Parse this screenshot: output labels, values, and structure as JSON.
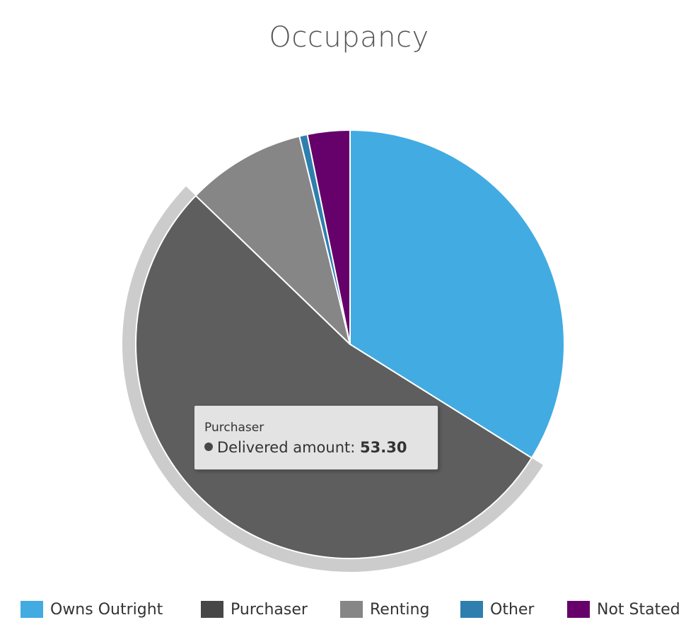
{
  "chart_data": {
    "type": "pie",
    "title": "Occupancy",
    "categories": [
      "Owns Outright",
      "Purchaser",
      "Renting",
      "Other",
      "Not Stated"
    ],
    "values": [
      33.9,
      53.3,
      9.0,
      0.6,
      3.2
    ],
    "colors": [
      "#42ABE2",
      "#5E5E5E",
      "#868686",
      "#2F7FAE",
      "#66006A"
    ],
    "legend_swatch_colors": [
      "#42ABE2",
      "#474747",
      "#868686",
      "#2F7FAE",
      "#66006A"
    ],
    "highlighted_index": 1,
    "legend_position": "bottom",
    "tooltip": {
      "category": "Purchaser",
      "series_label": "Delivered amount:",
      "value": "53.30"
    }
  }
}
